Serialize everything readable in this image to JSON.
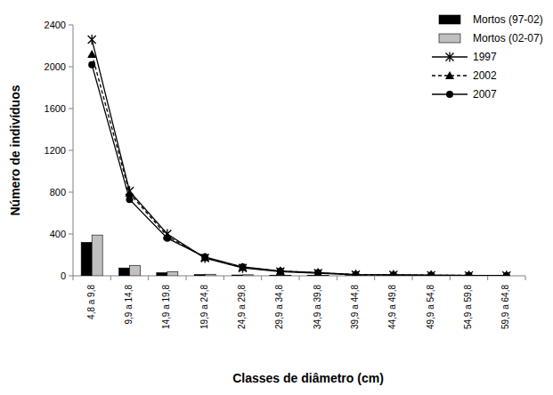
{
  "chart_data": {
    "type": "bar",
    "x_label": "Classes de diâmetro (cm)",
    "y_label": "Número de indivíduos",
    "categories": [
      "4,8 a 9,8",
      "9,9 a 14,8",
      "14,9 a 19,8",
      "19,9 a 24,8",
      "24,9 a 29,8",
      "29,9 a 34,8",
      "34,9 a 39,8",
      "39,9 a 44,8",
      "44,9 a 49,8",
      "49,9 a 54,8",
      "54,9 a 59,8",
      "59,9 a 64,8"
    ],
    "series": [
      {
        "name": "Mortos (97-02)",
        "type": "bar",
        "color": "#000000",
        "values": [
          320,
          75,
          30,
          12,
          8,
          4,
          3,
          2,
          1,
          1,
          0,
          0
        ]
      },
      {
        "name": "Mortos (02-07)",
        "type": "bar",
        "color": "#c0c0c0",
        "values": [
          390,
          100,
          40,
          15,
          10,
          6,
          4,
          2,
          1,
          1,
          1,
          0
        ]
      },
      {
        "name": "1997",
        "type": "line",
        "color": "#000000",
        "marker": "star",
        "line_style": "solid",
        "values": [
          2260,
          810,
          400,
          170,
          75,
          40,
          25,
          10,
          8,
          5,
          3,
          2
        ]
      },
      {
        "name": "2002",
        "type": "line",
        "color": "#000000",
        "marker": "triangle",
        "line_style": "dashed",
        "values": [
          2120,
          790,
          380,
          175,
          80,
          45,
          28,
          12,
          8,
          6,
          4,
          2
        ]
      },
      {
        "name": "2007",
        "type": "line",
        "color": "#000000",
        "marker": "circle",
        "line_style": "solid",
        "values": [
          2020,
          730,
          360,
          180,
          85,
          45,
          30,
          12,
          9,
          6,
          4,
          2
        ]
      }
    ],
    "ylim": [
      0,
      2400
    ],
    "yticks": [
      0,
      400,
      800,
      1200,
      1600,
      2000,
      2400
    ],
    "grid": false,
    "legend": "top-right"
  }
}
